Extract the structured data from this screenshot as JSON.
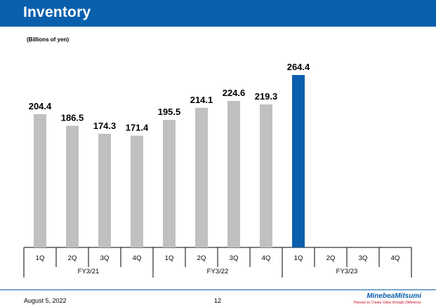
{
  "header": {
    "title": "Inventory"
  },
  "unit_label": "(Billions of yen)",
  "footer": {
    "date": "August 5, 2022",
    "page": "12",
    "logo_name": "MinebeaMitsumi",
    "logo_tagline": "Passion to Create Value through Difference"
  },
  "colors": {
    "accent": "#0a5fad",
    "bar_default": "#c0c0c0",
    "bar_highlight": "#0a5fad"
  },
  "chart_data": {
    "type": "bar",
    "title": "",
    "xlabel": "",
    "ylabel": "",
    "ylim": [
      0,
      264.4
    ],
    "grid": false,
    "legend": "none",
    "groups": [
      {
        "name": "FY3/21",
        "quarters": [
          "1Q",
          "2Q",
          "3Q",
          "4Q"
        ],
        "values": [
          204.4,
          186.5,
          174.3,
          171.4
        ]
      },
      {
        "name": "FY3/22",
        "quarters": [
          "1Q",
          "2Q",
          "3Q",
          "4Q"
        ],
        "values": [
          195.5,
          214.1,
          224.6,
          219.3
        ]
      },
      {
        "name": "FY3/23",
        "quarters": [
          "1Q",
          "2Q",
          "3Q",
          "4Q"
        ],
        "values": [
          264.4,
          null,
          null,
          null
        ]
      }
    ],
    "highlight": {
      "group": 2,
      "quarter": 0
    }
  }
}
